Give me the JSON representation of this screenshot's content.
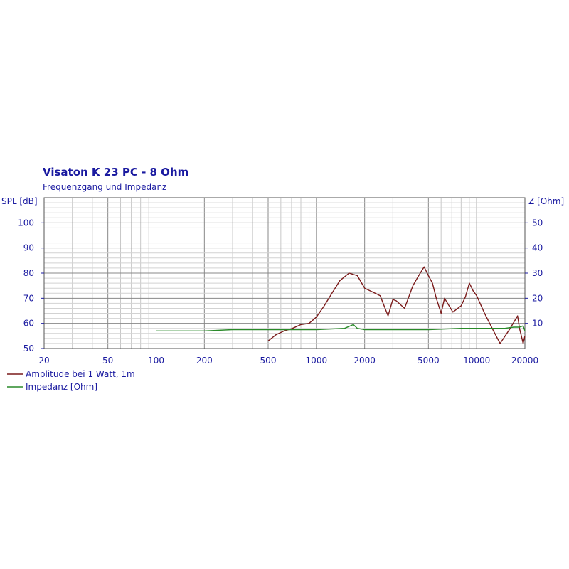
{
  "chart_data": {
    "type": "line",
    "title": "Visaton K 23 PC - 8 Ohm",
    "subtitle": "Frequenzgang und Impedanz",
    "x_scale": "log",
    "xlim": [
      20,
      20000
    ],
    "x_ticks": [
      20,
      50,
      100,
      200,
      500,
      1000,
      2000,
      5000,
      10000,
      20000
    ],
    "y_left": {
      "label": "SPL [dB]",
      "lim": [
        50,
        110
      ],
      "ticks": [
        50,
        60,
        70,
        80,
        90,
        100
      ]
    },
    "y_right": {
      "label": "Z [Ohm]",
      "lim": [
        0,
        60
      ],
      "ticks": [
        10,
        20,
        30,
        40,
        50
      ]
    },
    "grid": true,
    "legend_position": "bottom-left",
    "series": [
      {
        "name": "Amplitude bei 1 Watt, 1m",
        "axis": "left",
        "color": "#7a1a1a",
        "x": [
          500,
          560,
          630,
          710,
          800,
          900,
          1000,
          1120,
          1250,
          1400,
          1600,
          1800,
          2000,
          2240,
          2500,
          2800,
          3000,
          3150,
          3550,
          4000,
          4300,
          4700,
          5000,
          5300,
          5600,
          6000,
          6300,
          7100,
          8000,
          8500,
          9000,
          9500,
          10000,
          11200,
          12500,
          14000,
          16000,
          18000,
          18500,
          19000,
          19500,
          20000
        ],
        "y": [
          53,
          55.5,
          57,
          58,
          59.5,
          60,
          62.5,
          67,
          72,
          77,
          80,
          79,
          74,
          72.5,
          71,
          63,
          69.5,
          69,
          66,
          75,
          78.5,
          82.5,
          79,
          76,
          70,
          64,
          70,
          64.5,
          67,
          70.5,
          76,
          73,
          71,
          64,
          58,
          52,
          57.5,
          63,
          58,
          55,
          52,
          55
        ]
      },
      {
        "name": "Impedanz [Ohm]",
        "axis": "right",
        "color": "#2a8a2a",
        "x": [
          100,
          200,
          300,
          500,
          1000,
          1500,
          1700,
          1800,
          2000,
          3000,
          5000,
          8000,
          10000,
          15000,
          17000,
          18500,
          19500,
          20000
        ],
        "y": [
          7,
          7,
          7.5,
          7.5,
          7.5,
          8,
          9.5,
          8,
          7.5,
          7.5,
          7.5,
          8,
          8,
          8,
          8.5,
          8.5,
          9,
          7
        ]
      }
    ]
  }
}
